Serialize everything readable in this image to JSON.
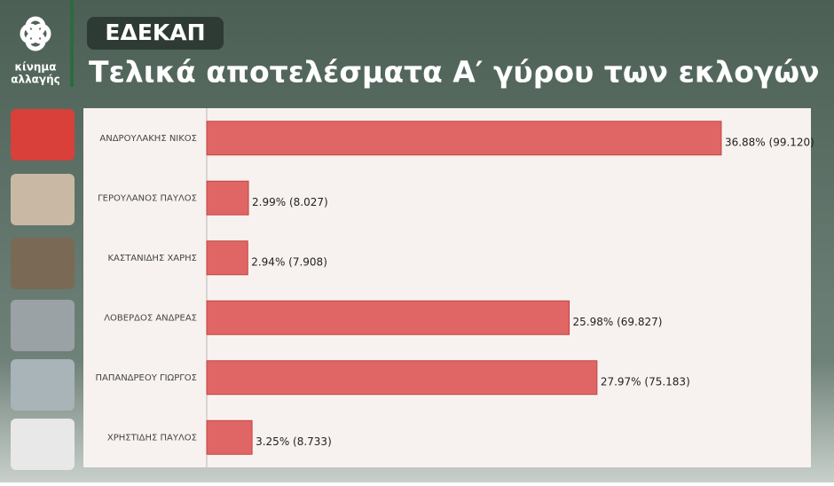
{
  "header": {
    "logo_line1": "κίνημα",
    "logo_line2": "αλλαγής",
    "badge": "ΕΔΕΚΑΠ",
    "title": "Τελικά αποτελέσματα Α′ γύρου των εκλογών"
  },
  "chart_data": {
    "type": "hbar",
    "categories": [
      "ΑΝΔΡΟΥΛΑΚΗΣ ΝΙΚΟΣ",
      "ΓΕΡΟΥΛΑΝΟΣ ΠΑΥΛΟΣ",
      "ΚΑΣΤΑΝΙΔΗΣ ΧΑΡΗΣ",
      "ΛΟΒΕΡΔΟΣ ΑΝΔΡΕΑΣ",
      "ΠΑΠΑΝΔΡΕΟΥ ΓΙΩΡΓΟΣ",
      "ΧΡΗΣΤΙΔΗΣ ΠΑΥΛΟΣ"
    ],
    "values": [
      36.88,
      2.99,
      2.94,
      25.98,
      27.97,
      3.25
    ],
    "value_labels": [
      "36.88% (99.120)",
      "2.99% (8.027)",
      "2.94% (7.908)",
      "25.98% (69.827)",
      "27.97% (75.183)",
      "3.25% (8.733)"
    ],
    "color": "#e06666",
    "xlim": [
      0,
      40
    ]
  }
}
